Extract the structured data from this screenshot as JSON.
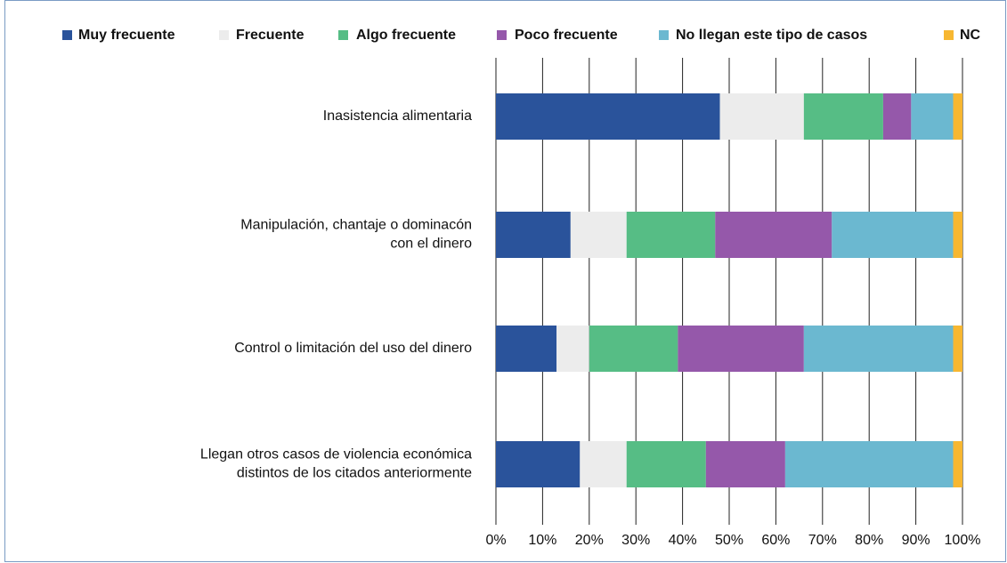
{
  "chart_data": {
    "type": "stacked_barh",
    "categories": [
      "Inasistencia alimentaria",
      [
        "Manipulación, chantaje o dominacón",
        "con el dinero"
      ],
      "Control o limitación del uso del dinero",
      [
        "Llegan otros casos de violencia económica",
        "distintos de los citados anteriormente"
      ]
    ],
    "series": [
      {
        "name": "Muy frecuente",
        "color": "#2a539b",
        "values": [
          48,
          16,
          13,
          18
        ]
      },
      {
        "name": "Frecuente",
        "color": "#ececec",
        "values": [
          18,
          12,
          7,
          10
        ]
      },
      {
        "name": "Algo frecuente",
        "color": "#56bd85",
        "values": [
          17,
          19,
          19,
          17
        ]
      },
      {
        "name": "Poco frecuente",
        "color": "#9558aa",
        "values": [
          6,
          25,
          27,
          17
        ]
      },
      {
        "name": "No llegan este tipo de casos",
        "color": "#6bb8d0",
        "values": [
          9,
          26,
          32,
          36
        ]
      },
      {
        "name": "NC",
        "color": "#f7b731",
        "values": [
          2,
          2,
          2,
          2
        ]
      }
    ],
    "xlim": [
      0,
      100
    ],
    "xticks": [
      {
        "value": 0,
        "label": "0%"
      },
      {
        "value": 10,
        "label": "10%"
      },
      {
        "value": 20,
        "label": "20%"
      },
      {
        "value": 30,
        "label": "30%"
      },
      {
        "value": 40,
        "label": "40%"
      },
      {
        "value": 50,
        "label": "50%"
      },
      {
        "value": 60,
        "label": "60%"
      },
      {
        "value": 70,
        "label": "70%"
      },
      {
        "value": 80,
        "label": "80%"
      },
      {
        "value": 90,
        "label": "90%"
      },
      {
        "value": 100,
        "label": "100%"
      }
    ],
    "grid": true,
    "legend": "top"
  }
}
